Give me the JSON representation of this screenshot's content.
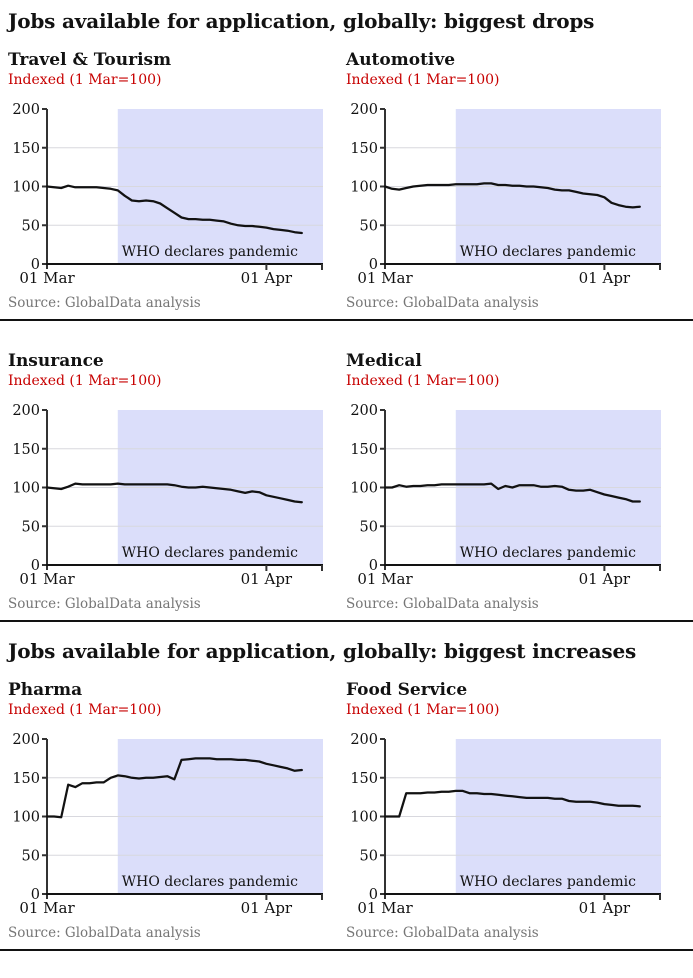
{
  "page": {
    "section_headers": [
      "Jobs available for application, globally: biggest drops",
      "Jobs available for application, globally: biggest increases"
    ]
  },
  "colors": {
    "text": "#121212",
    "accent_red": "#c70000",
    "shading": "#dbdefa",
    "gridline": "#d8d8de",
    "axis": "#333333",
    "line": "#121212",
    "source_gray": "#767676"
  },
  "chart_data": [
    {
      "type": "line",
      "title": "Travel & Tourism",
      "subtitle": "Indexed (1 Mar=100)",
      "source": "Source: GlobalData analysis",
      "x_axis": {
        "start": "01 Mar",
        "days_shown": 39,
        "ticks": [
          {
            "day": 0,
            "label": "01 Mar"
          },
          {
            "day": 31,
            "label": "01 Apr"
          },
          {
            "day": 39,
            "label": ""
          }
        ]
      },
      "y_axis": {
        "range": [
          0,
          200
        ],
        "ticks": [
          0,
          50,
          100,
          150,
          200
        ],
        "gridlines": [
          50,
          100,
          150
        ]
      },
      "shaded_region": {
        "start_day": 10,
        "label": "WHO declares pandemic"
      },
      "series": [
        {
          "name": "Travel & Tourism",
          "start_date": "01 Mar",
          "frequency": "daily",
          "values": [
            100,
            99,
            98,
            101,
            99,
            99,
            99,
            99,
            98,
            97,
            95,
            88,
            82,
            81,
            82,
            81,
            78,
            72,
            66,
            60,
            58,
            58,
            57,
            57,
            56,
            55,
            52,
            50,
            49,
            49,
            48,
            47,
            45,
            44,
            43,
            41,
            40
          ]
        }
      ]
    },
    {
      "type": "line",
      "title": "Automotive",
      "subtitle": "Indexed (1 Mar=100)",
      "source": "Source: GlobalData analysis",
      "x_axis": {
        "start": "01 Mar",
        "days_shown": 39,
        "ticks": [
          {
            "day": 0,
            "label": "01 Mar"
          },
          {
            "day": 31,
            "label": "01 Apr"
          },
          {
            "day": 39,
            "label": ""
          }
        ]
      },
      "y_axis": {
        "range": [
          0,
          200
        ],
        "ticks": [
          0,
          50,
          100,
          150,
          200
        ],
        "gridlines": [
          50,
          100,
          150
        ]
      },
      "shaded_region": {
        "start_day": 10,
        "label": "WHO declares pandemic"
      },
      "series": [
        {
          "name": "Automotive",
          "start_date": "01 Mar",
          "frequency": "daily",
          "values": [
            100,
            97,
            96,
            98,
            100,
            101,
            102,
            102,
            102,
            102,
            103,
            103,
            103,
            103,
            104,
            104,
            102,
            102,
            101,
            101,
            100,
            100,
            99,
            98,
            96,
            95,
            95,
            93,
            91,
            90,
            89,
            86,
            79,
            76,
            74,
            73,
            74
          ]
        }
      ]
    },
    {
      "type": "line",
      "title": "Insurance",
      "subtitle": "Indexed (1 Mar=100)",
      "source": "Source: GlobalData analysis",
      "x_axis": {
        "start": "01 Mar",
        "days_shown": 39,
        "ticks": [
          {
            "day": 0,
            "label": "01 Mar"
          },
          {
            "day": 31,
            "label": "01 Apr"
          },
          {
            "day": 39,
            "label": ""
          }
        ]
      },
      "y_axis": {
        "range": [
          0,
          200
        ],
        "ticks": [
          0,
          50,
          100,
          150,
          200
        ],
        "gridlines": [
          50,
          100,
          150
        ]
      },
      "shaded_region": {
        "start_day": 10,
        "label": "WHO declares pandemic"
      },
      "series": [
        {
          "name": "Insurance",
          "start_date": "01 Mar",
          "frequency": "daily",
          "values": [
            100,
            99,
            98,
            101,
            105,
            104,
            104,
            104,
            104,
            104,
            105,
            104,
            104,
            104,
            104,
            104,
            104,
            104,
            103,
            101,
            100,
            100,
            101,
            100,
            99,
            98,
            97,
            95,
            93,
            95,
            94,
            90,
            88,
            86,
            84,
            82,
            81
          ]
        }
      ]
    },
    {
      "type": "line",
      "title": "Medical",
      "subtitle": "Indexed (1 Mar=100)",
      "source": "Source: GlobalData analysis",
      "x_axis": {
        "start": "01 Mar",
        "days_shown": 39,
        "ticks": [
          {
            "day": 0,
            "label": "01 Mar"
          },
          {
            "day": 31,
            "label": "01 Apr"
          },
          {
            "day": 39,
            "label": ""
          }
        ]
      },
      "y_axis": {
        "range": [
          0,
          200
        ],
        "ticks": [
          0,
          50,
          100,
          150,
          200
        ],
        "gridlines": [
          50,
          100,
          150
        ]
      },
      "shaded_region": {
        "start_day": 10,
        "label": "WHO declares pandemic"
      },
      "series": [
        {
          "name": "Medical",
          "start_date": "01 Mar",
          "frequency": "daily",
          "values": [
            100,
            100,
            103,
            101,
            102,
            102,
            103,
            103,
            104,
            104,
            104,
            104,
            104,
            104,
            104,
            105,
            98,
            102,
            100,
            103,
            103,
            103,
            101,
            101,
            102,
            101,
            97,
            96,
            96,
            97,
            94,
            91,
            89,
            87,
            85,
            82,
            82
          ]
        }
      ]
    },
    {
      "type": "line",
      "title": "Pharma",
      "subtitle": "Indexed (1 Mar=100)",
      "source": "Source: GlobalData analysis",
      "x_axis": {
        "start": "01 Mar",
        "days_shown": 39,
        "ticks": [
          {
            "day": 0,
            "label": "01 Mar"
          },
          {
            "day": 31,
            "label": "01 Apr"
          },
          {
            "day": 39,
            "label": ""
          }
        ]
      },
      "y_axis": {
        "range": [
          0,
          200
        ],
        "ticks": [
          0,
          50,
          100,
          150,
          200
        ],
        "gridlines": [
          50,
          100,
          150
        ]
      },
      "shaded_region": {
        "start_day": 10,
        "label": "WHO declares pandemic"
      },
      "series": [
        {
          "name": "Pharma",
          "start_date": "01 Mar",
          "frequency": "daily",
          "values": [
            100,
            100,
            99,
            141,
            138,
            143,
            143,
            144,
            144,
            150,
            153,
            152,
            150,
            149,
            150,
            150,
            151,
            152,
            148,
            173,
            174,
            175,
            175,
            175,
            174,
            174,
            174,
            173,
            173,
            172,
            171,
            168,
            166,
            164,
            162,
            159,
            160
          ]
        }
      ]
    },
    {
      "type": "line",
      "title": "Food Service",
      "subtitle": "Indexed (1 Mar=100)",
      "source": "Source: GlobalData analysis",
      "x_axis": {
        "start": "01 Mar",
        "days_shown": 39,
        "ticks": [
          {
            "day": 0,
            "label": "01 Mar"
          },
          {
            "day": 31,
            "label": "01 Apr"
          },
          {
            "day": 39,
            "label": ""
          }
        ]
      },
      "y_axis": {
        "range": [
          0,
          200
        ],
        "ticks": [
          0,
          50,
          100,
          150,
          200
        ],
        "gridlines": [
          50,
          100,
          150
        ]
      },
      "shaded_region": {
        "start_day": 10,
        "label": "WHO declares pandemic"
      },
      "series": [
        {
          "name": "Food Service",
          "start_date": "01 Mar",
          "frequency": "daily",
          "values": [
            100,
            100,
            100,
            130,
            130,
            130,
            131,
            131,
            132,
            132,
            133,
            133,
            130,
            130,
            129,
            129,
            128,
            127,
            126,
            125,
            124,
            124,
            124,
            124,
            123,
            123,
            120,
            119,
            119,
            119,
            118,
            116,
            115,
            114,
            114,
            114,
            113
          ]
        }
      ]
    }
  ]
}
